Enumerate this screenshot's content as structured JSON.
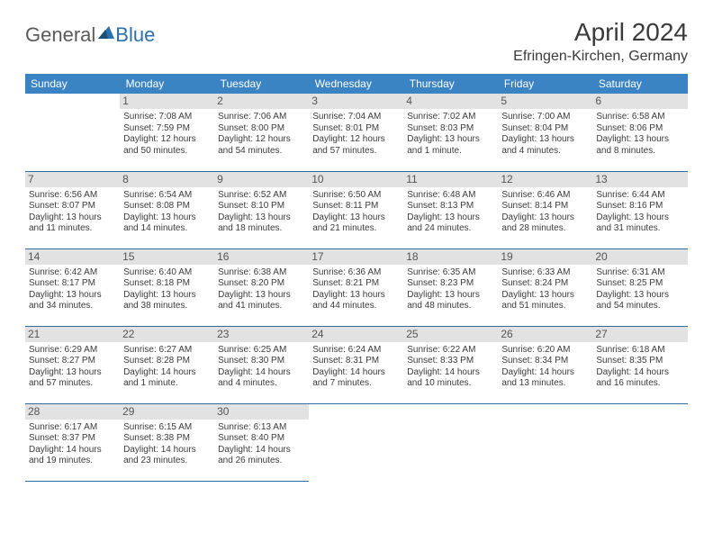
{
  "logo": {
    "part1": "General",
    "part2": "Blue"
  },
  "title": "April 2024",
  "location": "Efringen-Kirchen, Germany",
  "colors": {
    "header_bg": "#3b84c4",
    "header_text": "#ffffff",
    "daynum_bg": "#e2e2e2",
    "daynum_text": "#555555",
    "body_text": "#3a3a3a",
    "row_border": "#2f6aa0",
    "logo_gray": "#5a5a5a",
    "logo_blue": "#2b6fab"
  },
  "weekdays": [
    "Sunday",
    "Monday",
    "Tuesday",
    "Wednesday",
    "Thursday",
    "Friday",
    "Saturday"
  ],
  "grid_start_weekday": 1,
  "days": [
    {
      "n": 1,
      "sunrise": "7:08 AM",
      "sunset": "7:59 PM",
      "daylight": "12 hours and 50 minutes."
    },
    {
      "n": 2,
      "sunrise": "7:06 AM",
      "sunset": "8:00 PM",
      "daylight": "12 hours and 54 minutes."
    },
    {
      "n": 3,
      "sunrise": "7:04 AM",
      "sunset": "8:01 PM",
      "daylight": "12 hours and 57 minutes."
    },
    {
      "n": 4,
      "sunrise": "7:02 AM",
      "sunset": "8:03 PM",
      "daylight": "13 hours and 1 minute."
    },
    {
      "n": 5,
      "sunrise": "7:00 AM",
      "sunset": "8:04 PM",
      "daylight": "13 hours and 4 minutes."
    },
    {
      "n": 6,
      "sunrise": "6:58 AM",
      "sunset": "8:06 PM",
      "daylight": "13 hours and 8 minutes."
    },
    {
      "n": 7,
      "sunrise": "6:56 AM",
      "sunset": "8:07 PM",
      "daylight": "13 hours and 11 minutes."
    },
    {
      "n": 8,
      "sunrise": "6:54 AM",
      "sunset": "8:08 PM",
      "daylight": "13 hours and 14 minutes."
    },
    {
      "n": 9,
      "sunrise": "6:52 AM",
      "sunset": "8:10 PM",
      "daylight": "13 hours and 18 minutes."
    },
    {
      "n": 10,
      "sunrise": "6:50 AM",
      "sunset": "8:11 PM",
      "daylight": "13 hours and 21 minutes."
    },
    {
      "n": 11,
      "sunrise": "6:48 AM",
      "sunset": "8:13 PM",
      "daylight": "13 hours and 24 minutes."
    },
    {
      "n": 12,
      "sunrise": "6:46 AM",
      "sunset": "8:14 PM",
      "daylight": "13 hours and 28 minutes."
    },
    {
      "n": 13,
      "sunrise": "6:44 AM",
      "sunset": "8:16 PM",
      "daylight": "13 hours and 31 minutes."
    },
    {
      "n": 14,
      "sunrise": "6:42 AM",
      "sunset": "8:17 PM",
      "daylight": "13 hours and 34 minutes."
    },
    {
      "n": 15,
      "sunrise": "6:40 AM",
      "sunset": "8:18 PM",
      "daylight": "13 hours and 38 minutes."
    },
    {
      "n": 16,
      "sunrise": "6:38 AM",
      "sunset": "8:20 PM",
      "daylight": "13 hours and 41 minutes."
    },
    {
      "n": 17,
      "sunrise": "6:36 AM",
      "sunset": "8:21 PM",
      "daylight": "13 hours and 44 minutes."
    },
    {
      "n": 18,
      "sunrise": "6:35 AM",
      "sunset": "8:23 PM",
      "daylight": "13 hours and 48 minutes."
    },
    {
      "n": 19,
      "sunrise": "6:33 AM",
      "sunset": "8:24 PM",
      "daylight": "13 hours and 51 minutes."
    },
    {
      "n": 20,
      "sunrise": "6:31 AM",
      "sunset": "8:25 PM",
      "daylight": "13 hours and 54 minutes."
    },
    {
      "n": 21,
      "sunrise": "6:29 AM",
      "sunset": "8:27 PM",
      "daylight": "13 hours and 57 minutes."
    },
    {
      "n": 22,
      "sunrise": "6:27 AM",
      "sunset": "8:28 PM",
      "daylight": "14 hours and 1 minute."
    },
    {
      "n": 23,
      "sunrise": "6:25 AM",
      "sunset": "8:30 PM",
      "daylight": "14 hours and 4 minutes."
    },
    {
      "n": 24,
      "sunrise": "6:24 AM",
      "sunset": "8:31 PM",
      "daylight": "14 hours and 7 minutes."
    },
    {
      "n": 25,
      "sunrise": "6:22 AM",
      "sunset": "8:33 PM",
      "daylight": "14 hours and 10 minutes."
    },
    {
      "n": 26,
      "sunrise": "6:20 AM",
      "sunset": "8:34 PM",
      "daylight": "14 hours and 13 minutes."
    },
    {
      "n": 27,
      "sunrise": "6:18 AM",
      "sunset": "8:35 PM",
      "daylight": "14 hours and 16 minutes."
    },
    {
      "n": 28,
      "sunrise": "6:17 AM",
      "sunset": "8:37 PM",
      "daylight": "14 hours and 19 minutes."
    },
    {
      "n": 29,
      "sunrise": "6:15 AM",
      "sunset": "8:38 PM",
      "daylight": "14 hours and 23 minutes."
    },
    {
      "n": 30,
      "sunrise": "6:13 AM",
      "sunset": "8:40 PM",
      "daylight": "14 hours and 26 minutes."
    }
  ],
  "labels": {
    "sunrise": "Sunrise:",
    "sunset": "Sunset:",
    "daylight": "Daylight:"
  }
}
